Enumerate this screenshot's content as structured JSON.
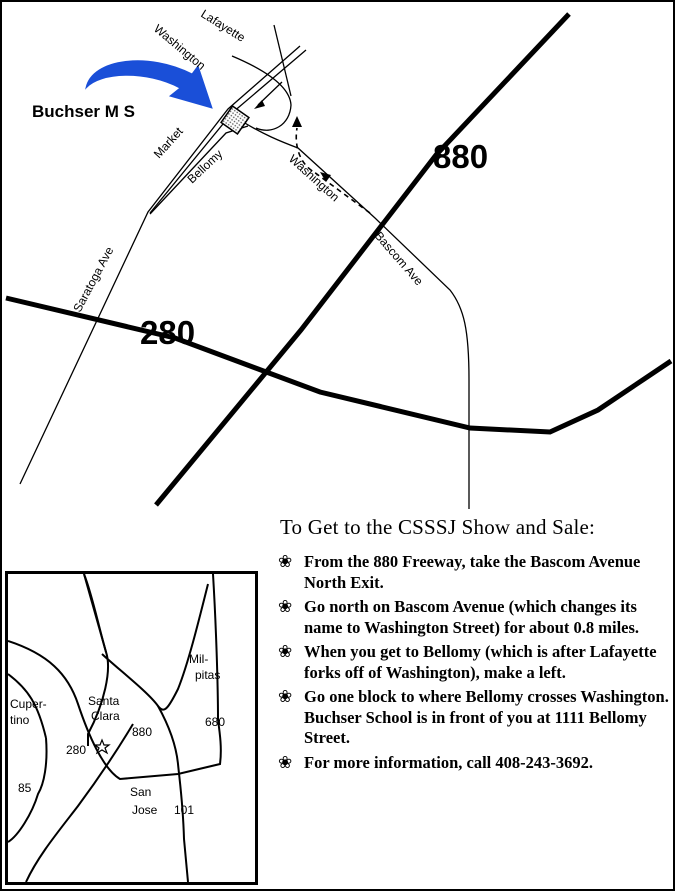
{
  "map": {
    "school_label": "Buchser M S",
    "streets": {
      "lafayette": "Lafayette",
      "washington_top": "Washington",
      "market": "Market",
      "bellomy": "Bellomy",
      "washington_mid": "Washington",
      "bascom": "Bascom Ave",
      "saratoga": "Saratoga Ave"
    },
    "freeways": {
      "f880": "880",
      "f280": "280"
    },
    "colors": {
      "arrow": "#1a4fd8",
      "road": "#000000",
      "school_fill": "dotted-gray"
    }
  },
  "directions": {
    "title": "To Get to the CSSSJ Show and Sale:",
    "bullet_icon": "flower-bullet",
    "steps": [
      "From the 880 Freeway, take the Bascom Avenue North Exit.",
      "Go north on Bascom Avenue (which changes its name to Washington Street) for about 0.8 miles.",
      "When you get to Bellomy (which is after Lafayette forks off of Washington), make a left.",
      "Go one block to where Bellomy crosses Washington.  Buchser School is in front of you at 1111 Bellomy Street.",
      "For more information, call 408-243-3692."
    ]
  },
  "inset": {
    "labels": {
      "cupertino": [
        "Cuper-",
        "tino"
      ],
      "santa_clara": [
        "Santa",
        "Clara"
      ],
      "milpitas": [
        "Mil-",
        "pitas"
      ],
      "san_jose": [
        "San",
        "Jose"
      ],
      "h280": "280",
      "h880": "880",
      "h680": "680",
      "h85": "85",
      "h101": "101"
    },
    "star_icon": "star-icon"
  }
}
